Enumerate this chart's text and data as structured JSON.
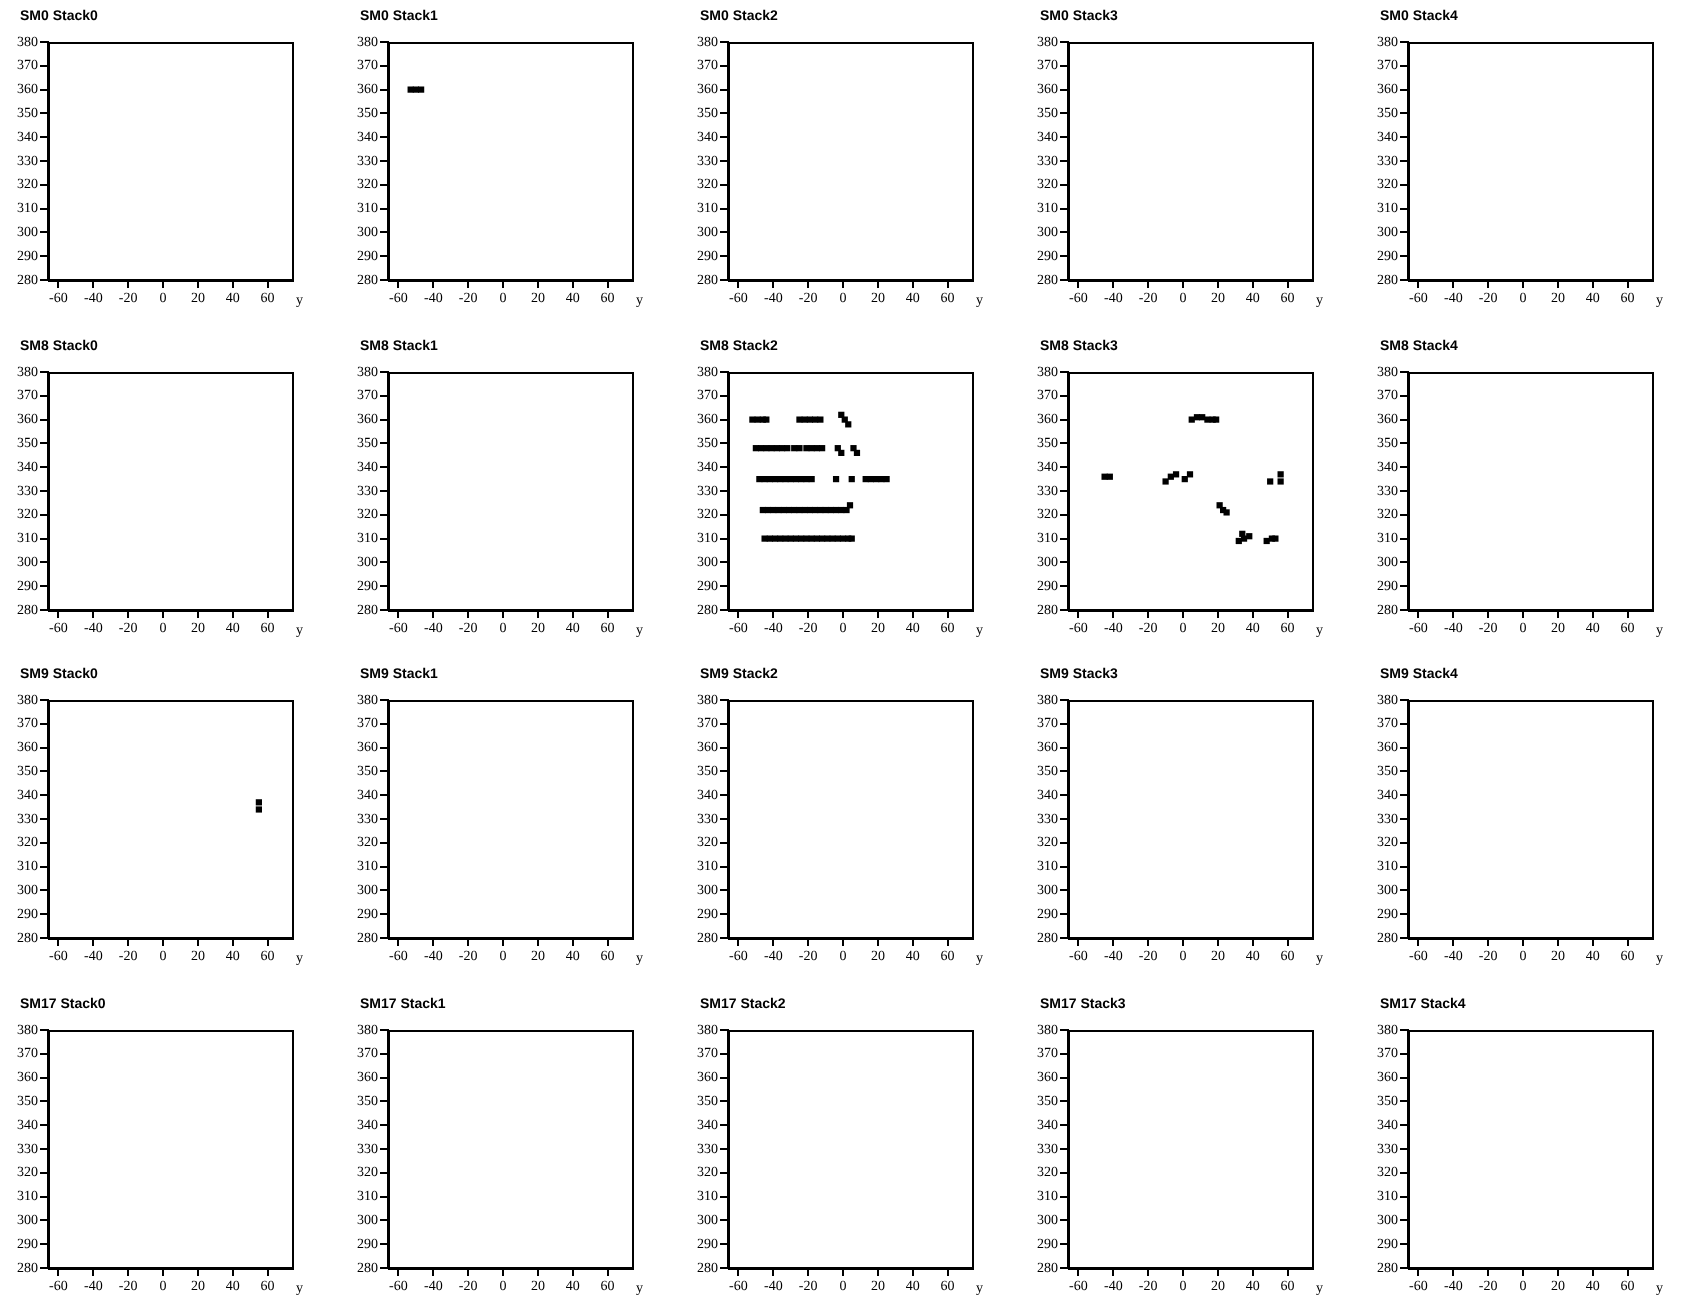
{
  "chart_data": [
    {
      "type": "scatter",
      "title": "SM0 Stack0",
      "xlabel": "y",
      "xlim": [
        -66,
        74
      ],
      "ylim": [
        280,
        380
      ],
      "xticks": [
        -60,
        -40,
        -20,
        0,
        20,
        40,
        60
      ],
      "yticks": [
        280,
        290,
        300,
        310,
        320,
        330,
        340,
        350,
        360,
        370,
        380
      ]
    },
    {
      "type": "scatter",
      "title": "SM0 Stack1",
      "xlabel": "y",
      "xlim": [
        -66,
        74
      ],
      "ylim": [
        280,
        380
      ],
      "xticks": [
        -60,
        -40,
        -20,
        0,
        20,
        40,
        60
      ],
      "yticks": [
        280,
        290,
        300,
        310,
        320,
        330,
        340,
        350,
        360,
        370,
        380
      ],
      "marker": "square",
      "series": [
        {
          "color": "#000000",
          "x": [
            -53,
            -50,
            -47
          ],
          "values": [
            360,
            360,
            360
          ]
        }
      ]
    },
    {
      "type": "scatter",
      "title": "SM0 Stack2",
      "xlabel": "y",
      "xlim": [
        -66,
        74
      ],
      "ylim": [
        280,
        380
      ],
      "xticks": [
        -60,
        -40,
        -20,
        0,
        20,
        40,
        60
      ],
      "yticks": [
        280,
        290,
        300,
        310,
        320,
        330,
        340,
        350,
        360,
        370,
        380
      ]
    },
    {
      "type": "scatter",
      "title": "SM0 Stack3",
      "xlabel": "y",
      "xlim": [
        -66,
        74
      ],
      "ylim": [
        280,
        380
      ],
      "xticks": [
        -60,
        -40,
        -20,
        0,
        20,
        40,
        60
      ],
      "yticks": [
        280,
        290,
        300,
        310,
        320,
        330,
        340,
        350,
        360,
        370,
        380
      ]
    },
    {
      "type": "scatter",
      "title": "SM0 Stack4",
      "xlabel": "y",
      "xlim": [
        -66,
        74
      ],
      "ylim": [
        280,
        380
      ],
      "xticks": [
        -60,
        -40,
        -20,
        0,
        20,
        40,
        60
      ],
      "yticks": [
        280,
        290,
        300,
        310,
        320,
        330,
        340,
        350,
        360,
        370,
        380
      ]
    },
    {
      "type": "scatter",
      "title": "SM8 Stack0",
      "xlabel": "y",
      "xlim": [
        -66,
        74
      ],
      "ylim": [
        280,
        380
      ],
      "xticks": [
        -60,
        -40,
        -20,
        0,
        20,
        40,
        60
      ],
      "yticks": [
        280,
        290,
        300,
        310,
        320,
        330,
        340,
        350,
        360,
        370,
        380
      ]
    },
    {
      "type": "scatter",
      "title": "SM8 Stack1",
      "xlabel": "y",
      "xlim": [
        -66,
        74
      ],
      "ylim": [
        280,
        380
      ],
      "xticks": [
        -60,
        -40,
        -20,
        0,
        20,
        40,
        60
      ],
      "yticks": [
        280,
        290,
        300,
        310,
        320,
        330,
        340,
        350,
        360,
        370,
        380
      ]
    },
    {
      "type": "scatter",
      "title": "SM8 Stack2",
      "xlabel": "y",
      "xlim": [
        -66,
        74
      ],
      "ylim": [
        280,
        380
      ],
      "xticks": [
        -60,
        -40,
        -20,
        0,
        20,
        40,
        60
      ],
      "yticks": [
        280,
        290,
        300,
        310,
        320,
        330,
        340,
        350,
        360,
        370,
        380
      ],
      "marker": "square",
      "series": [
        {
          "color": "#000000",
          "x": [
            -52,
            -49,
            -46,
            -44,
            -25,
            -22,
            -19,
            -16,
            -13,
            -1,
            1,
            3,
            -50,
            -47,
            -44,
            -41,
            -38,
            -35,
            -32,
            -28,
            -25,
            -21,
            -18,
            -15,
            -12,
            -3,
            -1,
            6,
            8,
            -48,
            -45,
            -42,
            -39,
            -36,
            -33,
            -30,
            -27,
            -24,
            -21,
            -18,
            -4,
            5,
            13,
            16,
            19,
            22,
            25,
            -46,
            -43,
            -40,
            -37,
            -34,
            -31,
            -28,
            -25,
            -22,
            -19,
            -16,
            -13,
            -10,
            -7,
            -4,
            -1,
            2,
            4,
            -45,
            -42,
            -39,
            -36,
            -33,
            -30,
            -27,
            -24,
            -21,
            -18,
            -15,
            -12,
            -9,
            -6,
            -3,
            0,
            3,
            5
          ],
          "values": [
            360,
            360,
            360,
            360,
            360,
            360,
            360,
            360,
            360,
            362,
            360,
            358,
            348,
            348,
            348,
            348,
            348,
            348,
            348,
            348,
            348,
            348,
            348,
            348,
            348,
            348,
            346,
            348,
            346,
            335,
            335,
            335,
            335,
            335,
            335,
            335,
            335,
            335,
            335,
            335,
            335,
            335,
            335,
            335,
            335,
            335,
            335,
            322,
            322,
            322,
            322,
            322,
            322,
            322,
            322,
            322,
            322,
            322,
            322,
            322,
            322,
            322,
            322,
            322,
            324,
            310,
            310,
            310,
            310,
            310,
            310,
            310,
            310,
            310,
            310,
            310,
            310,
            310,
            310,
            310,
            310,
            310,
            310
          ]
        }
      ]
    },
    {
      "type": "scatter",
      "title": "SM8 Stack3",
      "xlabel": "y",
      "xlim": [
        -66,
        74
      ],
      "ylim": [
        280,
        380
      ],
      "xticks": [
        -60,
        -40,
        -20,
        0,
        20,
        40,
        60
      ],
      "yticks": [
        280,
        290,
        300,
        310,
        320,
        330,
        340,
        350,
        360,
        370,
        380
      ],
      "marker": "square",
      "series": [
        {
          "color": "#000000",
          "x": [
            5,
            8,
            11,
            14,
            17,
            19,
            -45,
            -42,
            -10,
            -7,
            -4,
            1,
            4,
            21,
            23,
            25,
            32,
            35,
            38,
            34,
            48,
            51,
            53,
            50,
            56,
            56
          ],
          "values": [
            360,
            361,
            361,
            360,
            360,
            360,
            336,
            336,
            334,
            336,
            337,
            335,
            337,
            324,
            322,
            321,
            309,
            310,
            311,
            312,
            309,
            310,
            310,
            334,
            334,
            337
          ]
        }
      ]
    },
    {
      "type": "scatter",
      "title": "SM8 Stack4",
      "xlabel": "y",
      "xlim": [
        -66,
        74
      ],
      "ylim": [
        280,
        380
      ],
      "xticks": [
        -60,
        -40,
        -20,
        0,
        20,
        40,
        60
      ],
      "yticks": [
        280,
        290,
        300,
        310,
        320,
        330,
        340,
        350,
        360,
        370,
        380
      ]
    },
    {
      "type": "scatter",
      "title": "SM9 Stack0",
      "xlabel": "y",
      "xlim": [
        -66,
        74
      ],
      "ylim": [
        280,
        380
      ],
      "xticks": [
        -60,
        -40,
        -20,
        0,
        20,
        40,
        60
      ],
      "yticks": [
        280,
        290,
        300,
        310,
        320,
        330,
        340,
        350,
        360,
        370,
        380
      ],
      "marker": "square",
      "series": [
        {
          "color": "#000000",
          "x": [
            55,
            55
          ],
          "values": [
            334,
            337
          ]
        }
      ]
    },
    {
      "type": "scatter",
      "title": "SM9 Stack1",
      "xlabel": "y",
      "xlim": [
        -66,
        74
      ],
      "ylim": [
        280,
        380
      ],
      "xticks": [
        -60,
        -40,
        -20,
        0,
        20,
        40,
        60
      ],
      "yticks": [
        280,
        290,
        300,
        310,
        320,
        330,
        340,
        350,
        360,
        370,
        380
      ]
    },
    {
      "type": "scatter",
      "title": "SM9 Stack2",
      "xlabel": "y",
      "xlim": [
        -66,
        74
      ],
      "ylim": [
        280,
        380
      ],
      "xticks": [
        -60,
        -40,
        -20,
        0,
        20,
        40,
        60
      ],
      "yticks": [
        280,
        290,
        300,
        310,
        320,
        330,
        340,
        350,
        360,
        370,
        380
      ]
    },
    {
      "type": "scatter",
      "title": "SM9 Stack3",
      "xlabel": "y",
      "xlim": [
        -66,
        74
      ],
      "ylim": [
        280,
        380
      ],
      "xticks": [
        -60,
        -40,
        -20,
        0,
        20,
        40,
        60
      ],
      "yticks": [
        280,
        290,
        300,
        310,
        320,
        330,
        340,
        350,
        360,
        370,
        380
      ]
    },
    {
      "type": "scatter",
      "title": "SM9 Stack4",
      "xlabel": "y",
      "xlim": [
        -66,
        74
      ],
      "ylim": [
        280,
        380
      ],
      "xticks": [
        -60,
        -40,
        -20,
        0,
        20,
        40,
        60
      ],
      "yticks": [
        280,
        290,
        300,
        310,
        320,
        330,
        340,
        350,
        360,
        370,
        380
      ]
    },
    {
      "type": "scatter",
      "title": "SM17 Stack0",
      "xlabel": "y",
      "xlim": [
        -66,
        74
      ],
      "ylim": [
        280,
        380
      ],
      "xticks": [
        -60,
        -40,
        -20,
        0,
        20,
        40,
        60
      ],
      "yticks": [
        280,
        290,
        300,
        310,
        320,
        330,
        340,
        350,
        360,
        370,
        380
      ]
    },
    {
      "type": "scatter",
      "title": "SM17 Stack1",
      "xlabel": "y",
      "xlim": [
        -66,
        74
      ],
      "ylim": [
        280,
        380
      ],
      "xticks": [
        -60,
        -40,
        -20,
        0,
        20,
        40,
        60
      ],
      "yticks": [
        280,
        290,
        300,
        310,
        320,
        330,
        340,
        350,
        360,
        370,
        380
      ]
    },
    {
      "type": "scatter",
      "title": "SM17 Stack2",
      "xlabel": "y",
      "xlim": [
        -66,
        74
      ],
      "ylim": [
        280,
        380
      ],
      "xticks": [
        -60,
        -40,
        -20,
        0,
        20,
        40,
        60
      ],
      "yticks": [
        280,
        290,
        300,
        310,
        320,
        330,
        340,
        350,
        360,
        370,
        380
      ]
    },
    {
      "type": "scatter",
      "title": "SM17 Stack3",
      "xlabel": "y",
      "xlim": [
        -66,
        74
      ],
      "ylim": [
        280,
        380
      ],
      "xticks": [
        -60,
        -40,
        -20,
        0,
        20,
        40,
        60
      ],
      "yticks": [
        280,
        290,
        300,
        310,
        320,
        330,
        340,
        350,
        360,
        370,
        380
      ]
    },
    {
      "type": "scatter",
      "title": "SM17 Stack4",
      "xlabel": "y",
      "xlim": [
        -66,
        74
      ],
      "ylim": [
        280,
        380
      ],
      "xticks": [
        -60,
        -40,
        -20,
        0,
        20,
        40,
        60
      ],
      "yticks": [
        280,
        290,
        300,
        310,
        320,
        330,
        340,
        350,
        360,
        370,
        380
      ]
    }
  ]
}
